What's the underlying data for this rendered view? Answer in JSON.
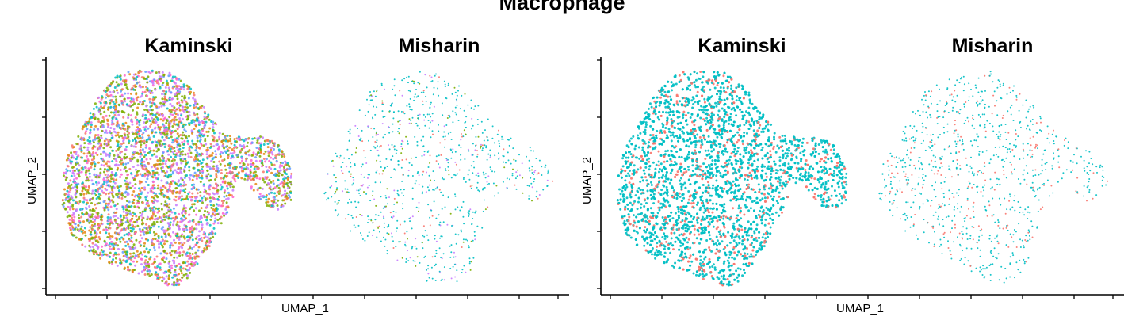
{
  "figure": {
    "title": "Macrophage"
  },
  "chart_data": [
    {
      "type": "scatter",
      "title": "Kaminski",
      "xlabel": "UMAP_1",
      "ylabel": "UMAP_2",
      "grid": false,
      "colors": [
        "#7CAE00",
        "#C77CFF",
        "#00BFC4",
        "#F8766D",
        "#E68613",
        "#FF61CC",
        "#619CFF"
      ],
      "density": "high"
    },
    {
      "type": "scatter",
      "title": "Misharin",
      "xlabel": "",
      "ylabel": "",
      "grid": false,
      "colors": [
        "#00BFC4",
        "#C77CFF",
        "#7CAE00",
        "#F8766D"
      ],
      "density": "low"
    },
    {
      "type": "scatter",
      "title": "Kaminski",
      "xlabel": "UMAP_1",
      "ylabel": "UMAP_2",
      "grid": false,
      "colors": [
        "#00BFC4",
        "#F8766D"
      ],
      "density": "high"
    },
    {
      "type": "scatter",
      "title": "Misharin",
      "xlabel": "",
      "ylabel": "",
      "grid": false,
      "colors": [
        "#00BFC4",
        "#F8766D"
      ],
      "density": "low"
    }
  ]
}
